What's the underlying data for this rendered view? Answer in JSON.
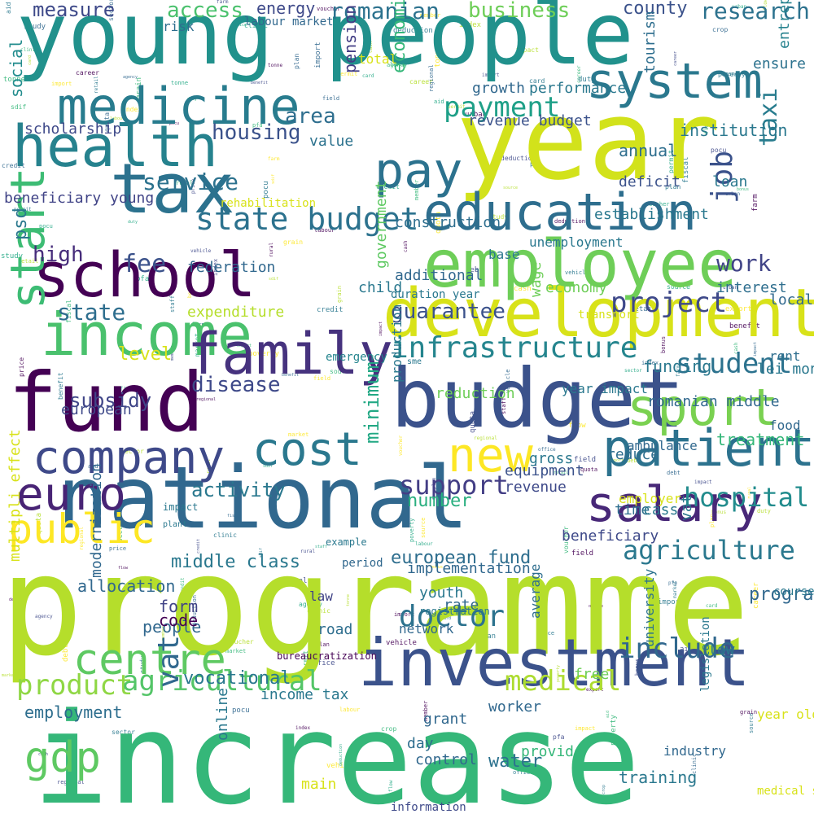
{
  "words": [
    {
      "text": "programme",
      "color": "#b5de2b"
    },
    {
      "text": "increase",
      "color": "#35b779"
    },
    {
      "text": "young people",
      "color": "#21918c"
    },
    {
      "text": "year",
      "color": "#d2e21b"
    },
    {
      "text": "national",
      "color": "#31688e"
    },
    {
      "text": "investment",
      "color": "#3b528b"
    },
    {
      "text": "budget",
      "color": "#3b528b"
    },
    {
      "text": "development",
      "color": "#d8e219"
    },
    {
      "text": "fund",
      "color": "#440154"
    },
    {
      "text": "employee",
      "color": "#6ece58"
    },
    {
      "text": "tax",
      "color": "#2c728e"
    },
    {
      "text": "income",
      "color": "#4ac16d"
    },
    {
      "text": "school",
      "color": "#440154"
    },
    {
      "text": "health",
      "color": "#26828e"
    },
    {
      "text": "medicine",
      "color": "#287c8e"
    },
    {
      "text": "education",
      "color": "#2e6e8e"
    },
    {
      "text": "system",
      "color": "#2a788e"
    },
    {
      "text": "patient",
      "color": "#2c728e"
    },
    {
      "text": "salary",
      "color": "#482878"
    },
    {
      "text": "family",
      "color": "#46327e"
    },
    {
      "text": "company",
      "color": "#3e4989"
    },
    {
      "text": "euro",
      "color": "#482475"
    },
    {
      "text": "cost",
      "color": "#2a788e"
    },
    {
      "text": "new",
      "color": "#fde725"
    },
    {
      "text": "sport",
      "color": "#7ad151"
    },
    {
      "text": "public",
      "color": "#fde725"
    },
    {
      "text": "centre",
      "color": "#5ec962"
    },
    {
      "text": "infrastructure",
      "color": "#25858e"
    },
    {
      "text": "state budget",
      "color": "#2c728e"
    },
    {
      "text": "pay",
      "color": "#2c728e"
    },
    {
      "text": "start",
      "color": "#3dbc74"
    },
    {
      "text": "product",
      "color": "#8fd744"
    },
    {
      "text": "agricultural",
      "color": "#54c568"
    },
    {
      "text": "include",
      "color": "#31688e"
    },
    {
      "text": "doctor",
      "color": "#2c728e"
    },
    {
      "text": "medical",
      "color": "#addc30"
    },
    {
      "text": "hospital",
      "color": "#228c8d"
    },
    {
      "text": "agriculture",
      "color": "#2a788e"
    },
    {
      "text": "student",
      "color": "#2c728e"
    },
    {
      "text": "support",
      "color": "#433e85"
    },
    {
      "text": "project",
      "color": "#3e4989"
    },
    {
      "text": "work",
      "color": "#414487"
    },
    {
      "text": "payment",
      "color": "#1fa088"
    },
    {
      "text": "romanian",
      "color": "#2c728e"
    },
    {
      "text": "business",
      "color": "#6ece58"
    },
    {
      "text": "research",
      "color": "#2c728e"
    },
    {
      "text": "access",
      "color": "#4ac16d"
    },
    {
      "text": "measure",
      "color": "#3e4989"
    },
    {
      "text": "service",
      "color": "#2c728e"
    },
    {
      "text": "housing",
      "color": "#3b528b"
    },
    {
      "text": "area",
      "color": "#2e6e8e"
    },
    {
      "text": "guarantee",
      "color": "#3b528b"
    },
    {
      "text": "state",
      "color": "#2e6e8e"
    },
    {
      "text": "high",
      "color": "#472d7b"
    },
    {
      "text": "subsidy",
      "color": "#404688"
    },
    {
      "text": "disease",
      "color": "#3e4989"
    },
    {
      "text": "activity",
      "color": "#2a788e"
    },
    {
      "text": "gdp",
      "color": "#5ec962"
    },
    {
      "text": "vat",
      "color": "#31688e"
    },
    {
      "text": "job",
      "color": "#3b528b"
    },
    {
      "text": "taxi",
      "color": "#287c8e"
    },
    {
      "text": "fee",
      "color": "#3b528b"
    },
    {
      "text": "level",
      "color": "#d8e219"
    },
    {
      "text": "social",
      "color": "#228c8d"
    },
    {
      "text": "pension",
      "color": "#433e85"
    },
    {
      "text": "economic",
      "color": "#35b779"
    },
    {
      "text": "minimum",
      "color": "#22a884"
    },
    {
      "text": "middle class",
      "color": "#2a788e"
    },
    {
      "text": "allocation",
      "color": "#31688e"
    },
    {
      "text": "european fund",
      "color": "#2e6e8e"
    },
    {
      "text": "number",
      "color": "#29af7f"
    },
    {
      "text": "water",
      "color": "#2c728e"
    },
    {
      "text": "employment",
      "color": "#2e6e8e"
    },
    {
      "text": "worker",
      "color": "#31688e"
    },
    {
      "text": "provide",
      "color": "#35b779"
    },
    {
      "text": "training",
      "color": "#2a788e"
    },
    {
      "text": "program",
      "color": "#31688e"
    },
    {
      "text": "county",
      "color": "#3b528b"
    },
    {
      "text": "energy",
      "color": "#3e4989"
    },
    {
      "text": "institution",
      "color": "#2a788e"
    },
    {
      "text": "people",
      "color": "#31688e"
    },
    {
      "text": "vocational",
      "color": "#2a788e"
    },
    {
      "text": "form",
      "color": "#414487"
    },
    {
      "text": "code",
      "color": "#440154"
    },
    {
      "text": "equipment",
      "color": "#3b528b"
    },
    {
      "text": "revenue",
      "color": "#3e4989"
    },
    {
      "text": "gross",
      "color": "#2a788e"
    },
    {
      "text": "treatment",
      "color": "#35b779"
    },
    {
      "text": "funding",
      "color": "#2a788e"
    },
    {
      "text": "european",
      "color": "#3e4989"
    },
    {
      "text": "federation",
      "color": "#31688e"
    },
    {
      "text": "expenditure",
      "color": "#b5de2b"
    },
    {
      "text": "economy",
      "color": "#6ece58"
    },
    {
      "text": "interest",
      "color": "#2e6e8e"
    },
    {
      "text": "local",
      "color": "#31688e"
    },
    {
      "text": "government",
      "color": "#5ec962"
    },
    {
      "text": "child",
      "color": "#2a788e"
    },
    {
      "text": "additional",
      "color": "#31688e"
    },
    {
      "text": "construction",
      "color": "#2e6e8e"
    },
    {
      "text": "unemployment",
      "color": "#2a788e"
    },
    {
      "text": "establishment",
      "color": "#2a788e"
    },
    {
      "text": "annual",
      "color": "#2e6e8e"
    },
    {
      "text": "deficit",
      "color": "#3b528b"
    },
    {
      "text": "loan",
      "color": "#2a788e"
    },
    {
      "text": "entrepreneurship",
      "color": "#26828e"
    },
    {
      "text": "tourism",
      "color": "#2e6e8e"
    },
    {
      "text": "ensure",
      "color": "#2c728e"
    },
    {
      "text": "growth",
      "color": "#31688e"
    },
    {
      "text": "performance",
      "color": "#2a788e"
    },
    {
      "text": "revenue budget",
      "color": "#3b528b"
    },
    {
      "text": "total",
      "color": "#d8e219"
    },
    {
      "text": "value",
      "color": "#2c728e"
    },
    {
      "text": "scholarship",
      "color": "#3e4989"
    },
    {
      "text": "beneficiary young",
      "color": "#414487"
    },
    {
      "text": "psd",
      "color": "#2a788e"
    },
    {
      "text": "risk",
      "color": "#2e6e8e"
    },
    {
      "text": "labour market",
      "color": "#31688e"
    },
    {
      "text": "rehabilitation",
      "color": "#d8e219"
    },
    {
      "text": "emergency",
      "color": "#25858e"
    },
    {
      "text": "reduction",
      "color": "#6ece58"
    },
    {
      "text": "lei month",
      "color": "#2a788e"
    },
    {
      "text": "romanian middle",
      "color": "#31688e"
    },
    {
      "text": "reduce",
      "color": "#2e6e8e"
    },
    {
      "text": "year impact",
      "color": "#2a788e"
    },
    {
      "text": "ambulance",
      "color": "#31688e"
    },
    {
      "text": "employer",
      "color": "#d8e219"
    },
    {
      "text": "time",
      "color": "#2e6e8e"
    },
    {
      "text": "cass",
      "color": "#2a788e"
    },
    {
      "text": "law",
      "color": "#414487"
    },
    {
      "text": "road",
      "color": "#2e6e8e"
    },
    {
      "text": "rate",
      "color": "#31688e"
    },
    {
      "text": "youth",
      "color": "#2a788e"
    },
    {
      "text": "network",
      "color": "#31688e"
    },
    {
      "text": "average",
      "color": "#2e6e8e"
    },
    {
      "text": "free",
      "color": "#6ece58"
    },
    {
      "text": "implementation",
      "color": "#31688e"
    },
    {
      "text": "period",
      "color": "#31688e"
    },
    {
      "text": "income tax",
      "color": "#2a788e"
    },
    {
      "text": "modernization",
      "color": "#31688e"
    },
    {
      "text": "grant",
      "color": "#31688e"
    },
    {
      "text": "day",
      "color": "#2e6e8e"
    },
    {
      "text": "control",
      "color": "#31688e"
    },
    {
      "text": "information",
      "color": "#3e4989"
    },
    {
      "text": "low",
      "color": "#2a788e"
    },
    {
      "text": "university",
      "color": "#2c728e"
    },
    {
      "text": "industry",
      "color": "#31688e"
    },
    {
      "text": "online",
      "color": "#2a788e"
    },
    {
      "text": "main",
      "color": "#d8e219"
    },
    {
      "text": "wage",
      "color": "#6ece58"
    },
    {
      "text": "production",
      "color": "#2a788e"
    },
    {
      "text": "multipli effect",
      "color": "#d8e219"
    },
    {
      "text": "bureaucratization",
      "color": "#440154"
    },
    {
      "text": "legislation",
      "color": "#2a788e"
    },
    {
      "text": "year old",
      "color": "#d8e219"
    },
    {
      "text": "rent",
      "color": "#2e6e8e"
    },
    {
      "text": "food",
      "color": "#31688e"
    },
    {
      "text": "course",
      "color": "#2a788e"
    },
    {
      "text": "beneficiary",
      "color": "#3e4989"
    },
    {
      "text": "transport",
      "color": "#d8e219"
    },
    {
      "text": "base",
      "color": "#2a788e"
    },
    {
      "text": "duration year",
      "color": "#2a788e"
    },
    {
      "text": "sme",
      "color": "#2a788e"
    },
    {
      "text": "plant",
      "color": "#2a788e"
    },
    {
      "text": "impact",
      "color": "#2a788e"
    },
    {
      "text": "example",
      "color": "#2a788e"
    },
    {
      "text": "registration",
      "color": "#2a788e"
    },
    {
      "text": "medical staff",
      "color": "#d8e219"
    },
    {
      "text": "vat",
      "color": "#2a788e"
    }
  ],
  "filler": [
    "regional",
    "agency",
    "labour",
    "benefit",
    "sector",
    "cash",
    "deduction",
    "source",
    "impact",
    "pfa",
    "tonne",
    "farm",
    "clinic",
    "member",
    "staff",
    "poverty",
    "index",
    "credit",
    "export",
    "import",
    "retail",
    "rural",
    "urban",
    "permit",
    "debt",
    "aid",
    "flow",
    "plan",
    "card",
    "bonus",
    "pocu",
    "sdif",
    "quota",
    "fiscal",
    "voucher",
    "vehicle",
    "study",
    "career",
    "office",
    "market",
    "field",
    "crop",
    "grain",
    "price",
    "duty"
  ]
}
